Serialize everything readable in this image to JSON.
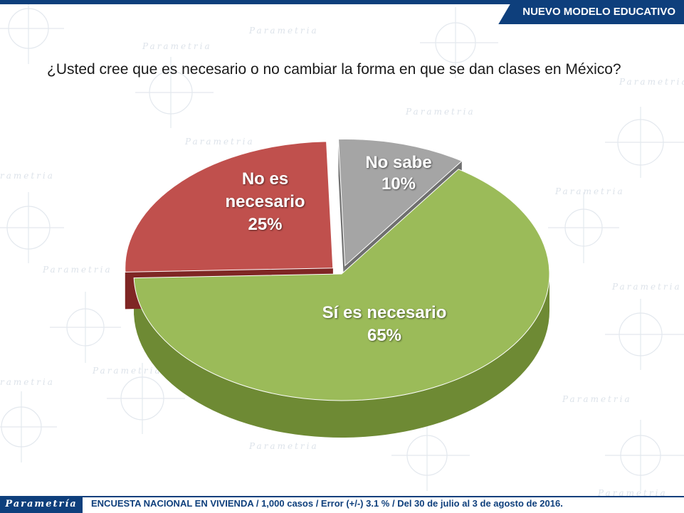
{
  "header": {
    "tag": "NUEVO MODELO EDUCATIVO"
  },
  "question": "¿Usted cree que es necesario o no cambiar la forma en que se dan clases en México?",
  "chart_data": {
    "type": "pie",
    "title": "¿Usted cree que es necesario o no cambiar la forma en que se dan clases en México?",
    "slices": [
      {
        "label": "Sí es necesario",
        "value": 65,
        "display": "65%",
        "color": "#9bbb59",
        "side_color": "#6e8a34"
      },
      {
        "label": "No es necesario",
        "value": 25,
        "display": "25%",
        "color": "#c0504d",
        "side_color": "#7f2624"
      },
      {
        "label": "No sabe",
        "value": 10,
        "display": "10%",
        "color": "#a5a5a5",
        "side_color": "#6f6f6f"
      }
    ],
    "exploded": [
      "No es necesario",
      "No sabe"
    ],
    "legend": "none",
    "style": "3d"
  },
  "footer": {
    "brand": "Parametría",
    "source": "ENCUESTA NACIONAL EN VIVIENDA / 1,000 casos / Error (+/-) 3.1 % / Del 30 de julio al 3 de agosto de 2016."
  }
}
